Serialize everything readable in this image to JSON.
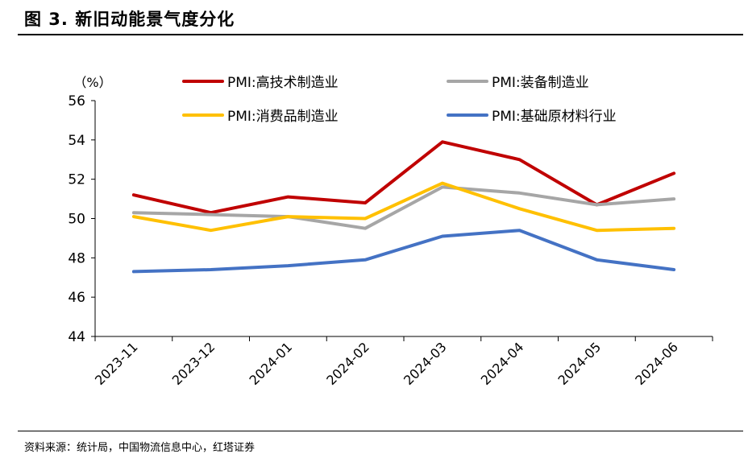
{
  "header": {
    "title": "图 3. 新旧动能景气度分化"
  },
  "footer": {
    "source": "资料来源：统计局，中国物流信息中心，红塔证券"
  },
  "chart_data": {
    "type": "line",
    "title": "",
    "xlabel": "",
    "ylabel": "（%）",
    "categories": [
      "2023-11",
      "2023-12",
      "2024-01",
      "2024-02",
      "2024-03",
      "2024-04",
      "2024-05",
      "2024-06"
    ],
    "ylim": [
      44,
      56
    ],
    "yticks": [
      "44",
      "46",
      "48",
      "50",
      "52",
      "54",
      "56"
    ],
    "grid": false,
    "legend_position": "top",
    "series": [
      {
        "name": "PMI:高技术制造业",
        "color": "#c00000",
        "values": [
          51.2,
          50.3,
          51.1,
          50.8,
          53.9,
          53.0,
          50.7,
          52.3
        ]
      },
      {
        "name": "PMI:装备制造业",
        "color": "#a6a6a6",
        "values": [
          50.3,
          50.2,
          50.1,
          49.5,
          51.6,
          51.3,
          50.7,
          51.0
        ]
      },
      {
        "name": "PMI:消费品制造业",
        "color": "#ffc000",
        "values": [
          50.1,
          49.4,
          50.1,
          50.0,
          51.8,
          50.5,
          49.4,
          49.5
        ]
      },
      {
        "name": "PMI:基础原材料行业",
        "color": "#4472c4",
        "values": [
          47.3,
          47.4,
          47.6,
          47.9,
          49.1,
          49.4,
          47.9,
          47.4
        ]
      }
    ]
  }
}
